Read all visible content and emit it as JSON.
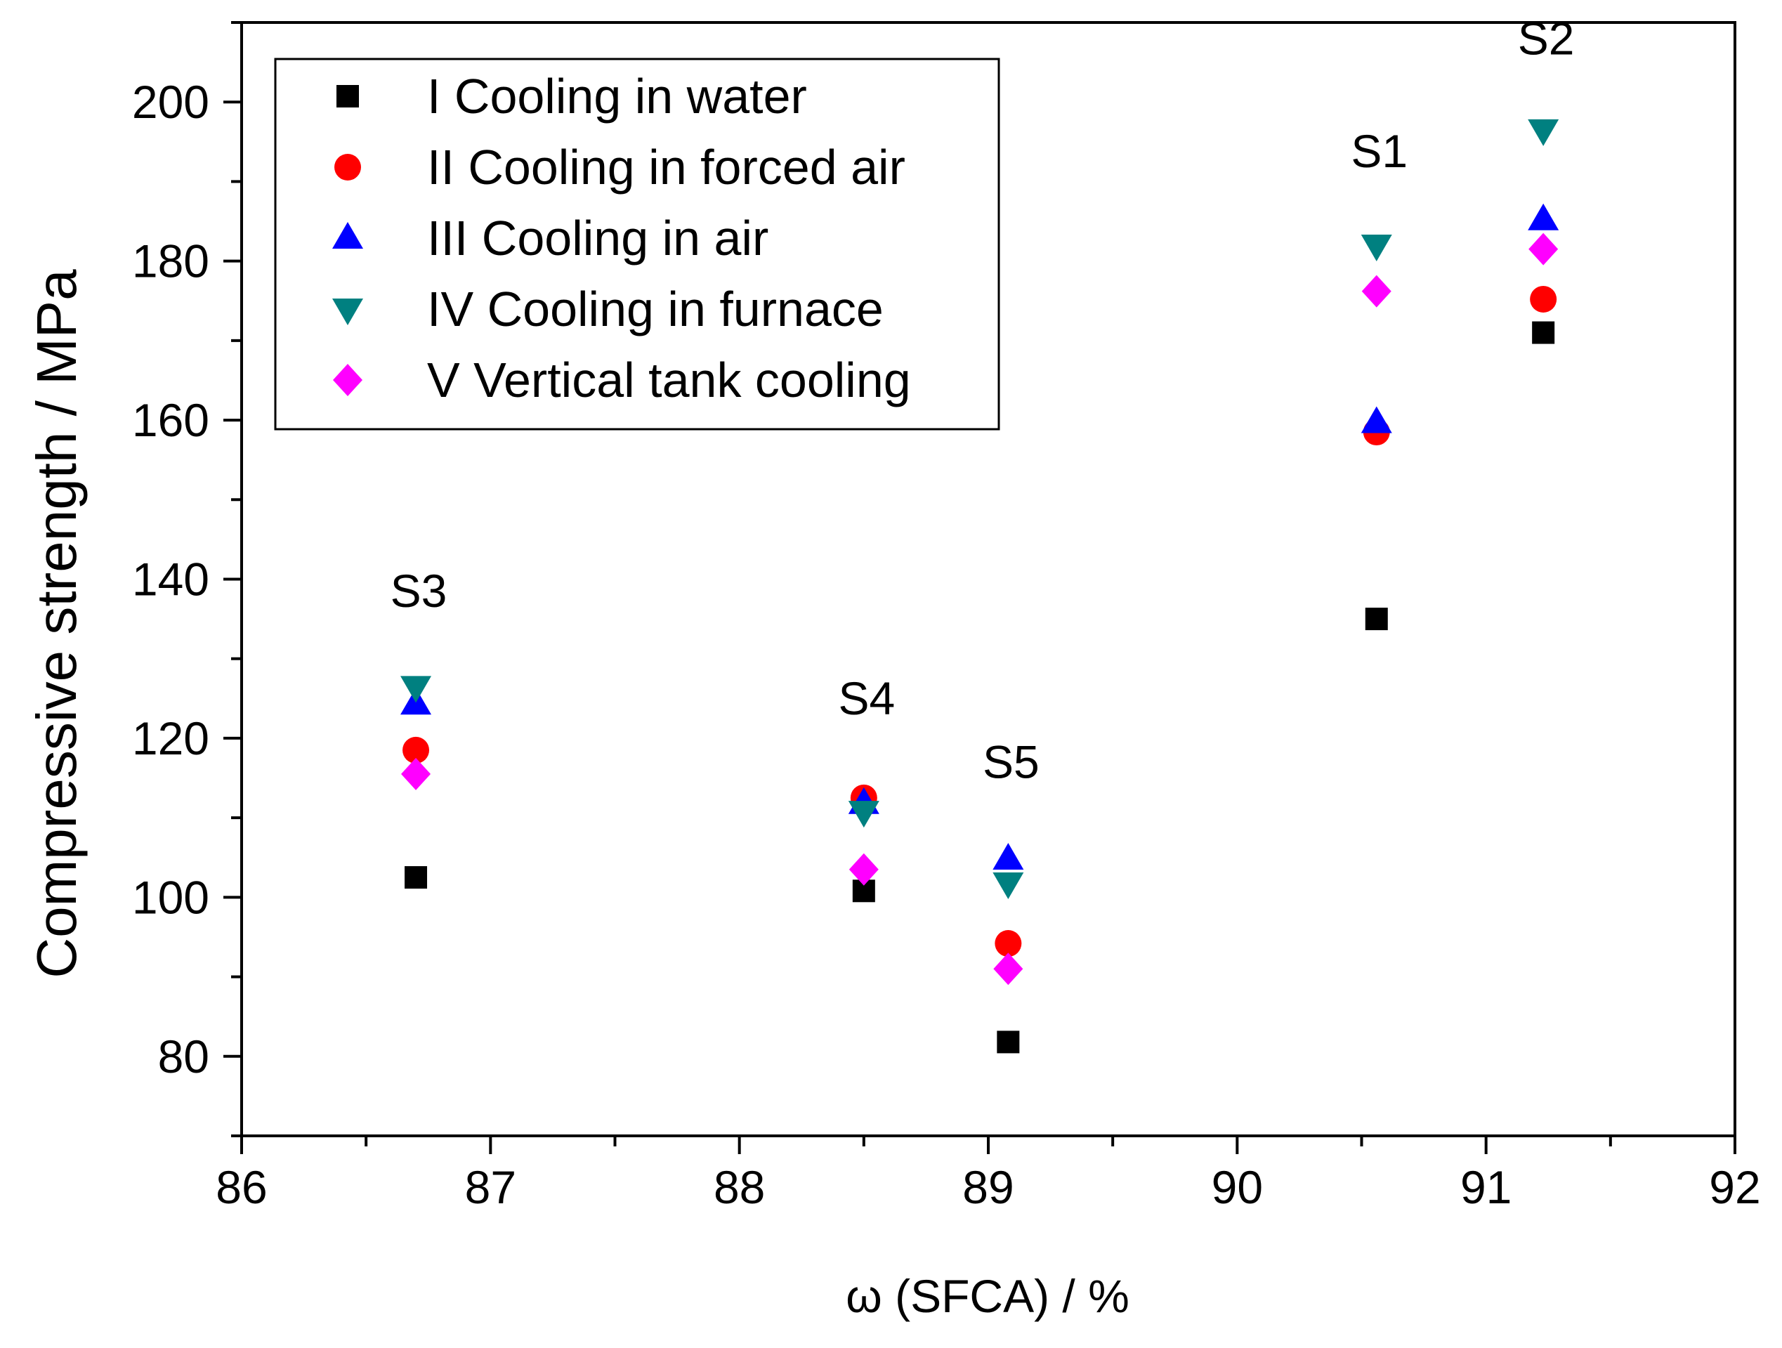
{
  "chart_data": {
    "type": "scatter",
    "title": "",
    "xlabel": "ω (SFCA) / %",
    "ylabel": "Compressive strength / MPa",
    "xlim": [
      86,
      92
    ],
    "ylim": [
      70,
      210
    ],
    "xticks": [
      86,
      87,
      88,
      89,
      90,
      91,
      92
    ],
    "yticks": [
      80,
      100,
      120,
      140,
      160,
      180,
      200
    ],
    "grid": false,
    "legend_position": "top-left",
    "series": [
      {
        "name": "I Cooling in water",
        "marker": "square",
        "color": "#000000",
        "x": [
          86.7,
          88.5,
          89.08,
          90.56,
          91.23
        ],
        "y": [
          102.5,
          100.8,
          81.8,
          135.0,
          171.0
        ]
      },
      {
        "name": "II Cooling in forced air",
        "marker": "circle",
        "color": "#ff0000",
        "x": [
          86.7,
          88.5,
          89.08,
          90.56,
          91.23
        ],
        "y": [
          118.5,
          112.5,
          94.2,
          158.5,
          175.2
        ]
      },
      {
        "name": "III Cooling in air",
        "marker": "triangle-up",
        "color": "#0000ff",
        "x": [
          86.7,
          88.5,
          89.08,
          90.56,
          91.23
        ],
        "y": [
          124.3,
          111.8,
          104.8,
          159.7,
          185.2
        ]
      },
      {
        "name": "IV Cooling in furnace",
        "marker": "triangle-down",
        "color": "#008080",
        "x": [
          86.7,
          88.5,
          89.08,
          90.56,
          91.23
        ],
        "y": [
          126.5,
          110.8,
          101.8,
          182.0,
          196.5
        ]
      },
      {
        "name": "V Vertical tank cooling",
        "marker": "diamond",
        "color": "#ff00ff",
        "x": [
          86.7,
          88.5,
          89.08,
          90.56,
          91.23
        ],
        "y": [
          115.5,
          103.5,
          91.0,
          176.2,
          181.5
        ]
      }
    ],
    "annotations": [
      {
        "text": "S3",
        "x": 86.7,
        "y": 136.5
      },
      {
        "text": "S4",
        "x": 88.5,
        "y": 123.0
      },
      {
        "text": "S5",
        "x": 89.08,
        "y": 115.0
      },
      {
        "text": "S1",
        "x": 90.56,
        "y": 191.8
      },
      {
        "text": "S2",
        "x": 91.23,
        "y": 206.0
      }
    ]
  }
}
